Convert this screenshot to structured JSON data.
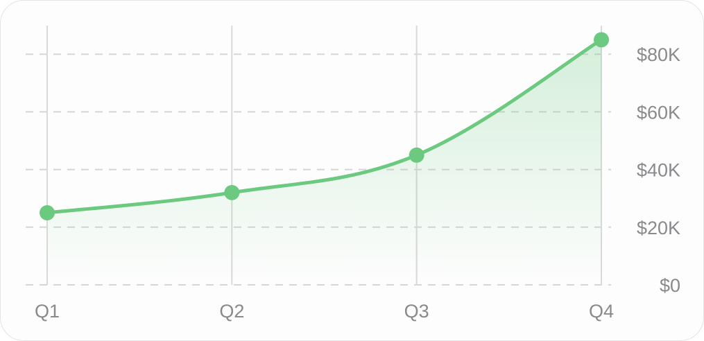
{
  "chart_data": {
    "type": "line",
    "categories": [
      "Q1",
      "Q2",
      "Q3",
      "Q4"
    ],
    "series": [
      {
        "values": [
          25000,
          32000,
          45000,
          85000
        ],
        "color": "#6cc980"
      }
    ],
    "y_ticks": [
      "$0",
      "$20K",
      "$40K",
      "$60K",
      "$80K"
    ],
    "y_tick_values": [
      0,
      20000,
      40000,
      60000,
      80000
    ],
    "ylim": [
      0,
      90000
    ],
    "y_axis_position": "right",
    "grid": {
      "horizontal": "dashed",
      "vertical": "solid"
    },
    "area_fill": true,
    "title": "",
    "xlabel": "",
    "ylabel": ""
  }
}
